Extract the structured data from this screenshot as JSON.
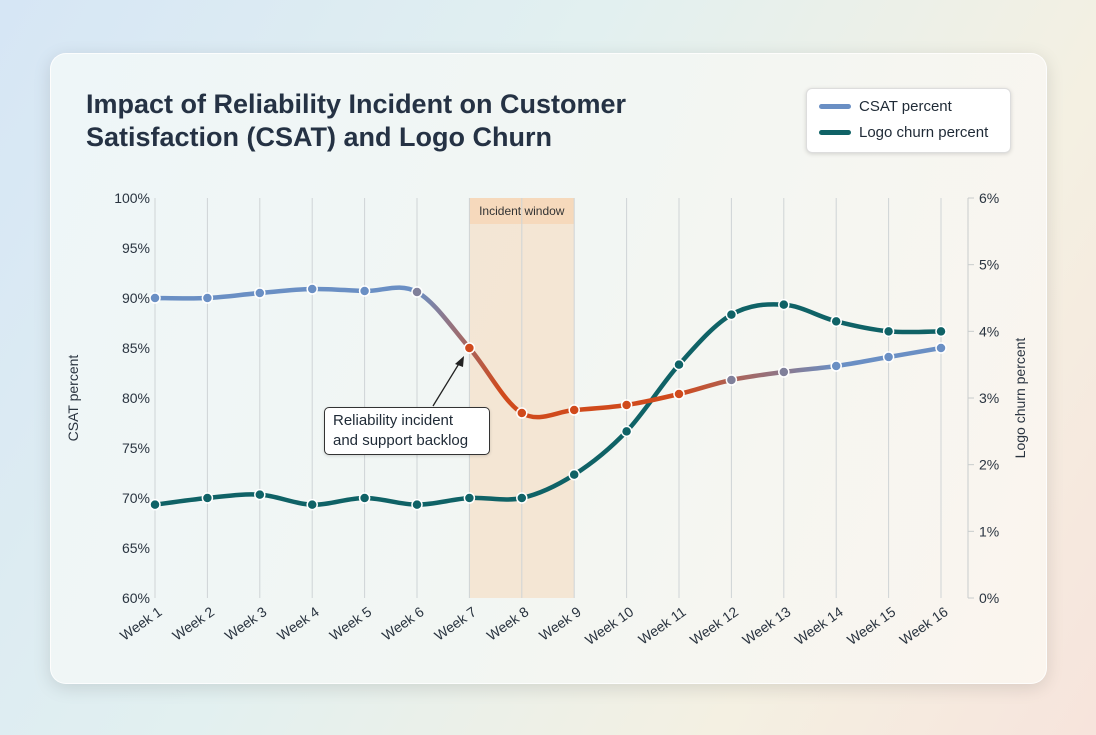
{
  "chart_data": {
    "type": "line",
    "title": "Impact of Reliability Incident on Customer Satisfaction (CSAT) and Logo Churn",
    "categories": [
      "Week 1",
      "Week 2",
      "Week 3",
      "Week 4",
      "Week 5",
      "Week 6",
      "Week 7",
      "Week 8",
      "Week 9",
      "Week 10",
      "Week 11",
      "Week 12",
      "Week 13",
      "Week 14",
      "Week 15",
      "Week 16"
    ],
    "series": [
      {
        "name": "CSAT percent",
        "axis": "left",
        "color": "#6a8fc4",
        "highlight_color": "#d04a1c",
        "values": [
          90.0,
          90.0,
          90.5,
          90.9,
          90.7,
          90.6,
          85.0,
          78.5,
          78.8,
          79.3,
          80.4,
          81.8,
          82.6,
          83.2,
          84.1,
          85.0
        ]
      },
      {
        "name": "Logo churn percent",
        "axis": "right",
        "color": "#0f6266",
        "values": [
          1.4,
          1.5,
          1.55,
          1.4,
          1.5,
          1.4,
          1.5,
          1.5,
          1.85,
          2.5,
          3.5,
          4.25,
          4.4,
          4.15,
          4.0,
          4.0
        ]
      }
    ],
    "ylabel": "CSAT percent",
    "ylim": [
      60,
      100
    ],
    "yticks": [
      "60%",
      "65%",
      "70%",
      "75%",
      "80%",
      "85%",
      "90%",
      "95%",
      "100%"
    ],
    "y2label": "Logo churn percent",
    "y2lim": [
      0,
      6
    ],
    "y2ticks": [
      "0%",
      "1%",
      "2%",
      "3%",
      "4%",
      "5%",
      "6%"
    ],
    "grid": "vertical",
    "legend": "top-right",
    "shaded_region": {
      "label": "Incident window",
      "from": "Week 7",
      "to": "Week 9",
      "color": "#f7d3b0"
    },
    "annotation": {
      "line1": "Reliability incident",
      "line2": "and support backlog",
      "target": "Week 7"
    }
  }
}
